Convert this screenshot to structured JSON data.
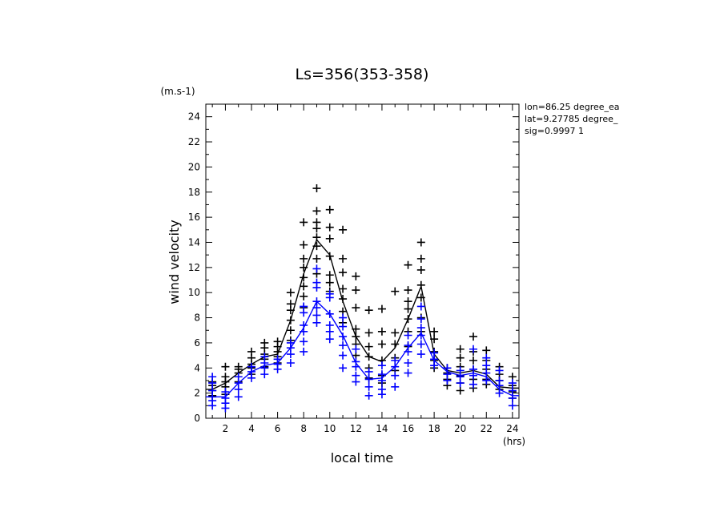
{
  "chart_data": {
    "type": "scatter",
    "title": "Ls=356(353-358)",
    "ylabel": "wind velocity",
    "xlabel": "local time",
    "y_unit": "(m.s-1)",
    "x_unit": "(hrs)",
    "xlim": [
      0.5,
      24.5
    ],
    "ylim": [
      0,
      25
    ],
    "x_ticks": [
      2,
      4,
      6,
      8,
      10,
      12,
      14,
      16,
      18,
      20,
      22,
      24
    ],
    "y_ticks": [
      0,
      2,
      4,
      6,
      8,
      10,
      12,
      14,
      16,
      18,
      20,
      22,
      24
    ],
    "info_lines": [
      "lon=86.25 degree_ea",
      "lat=9.27785 degree_",
      "sig=0.9997 1"
    ],
    "colors": {
      "black_series": "#000000",
      "blue_series": "#0000ff"
    },
    "series": [
      {
        "color": "black",
        "mean": [
          2.3,
          2.8,
          3.6,
          4.3,
          4.9,
          5.1,
          7.8,
          11.5,
          14.2,
          13.0,
          9.3,
          6.5,
          4.9,
          4.5,
          5.6,
          7.9,
          10.5,
          5.1,
          3.8,
          3.6,
          3.8,
          3.5,
          2.5,
          2.4
        ],
        "points": [
          [
            1,
            2.2
          ],
          [
            1,
            2.6
          ],
          [
            1,
            2.9
          ],
          [
            1,
            1.8
          ],
          [
            2,
            1.9
          ],
          [
            2,
            2.5
          ],
          [
            2,
            2.9
          ],
          [
            2,
            3.3
          ],
          [
            2,
            4.1
          ],
          [
            3,
            2.9
          ],
          [
            3,
            3.6
          ],
          [
            3,
            3.9
          ],
          [
            3,
            4.1
          ],
          [
            4,
            3.5
          ],
          [
            4,
            4.0
          ],
          [
            4,
            4.3
          ],
          [
            4,
            4.8
          ],
          [
            4,
            5.3
          ],
          [
            5,
            4.1
          ],
          [
            5,
            4.7
          ],
          [
            5,
            5.1
          ],
          [
            5,
            5.6
          ],
          [
            5,
            6.0
          ],
          [
            6,
            4.4
          ],
          [
            6,
            4.9
          ],
          [
            6,
            5.3
          ],
          [
            6,
            5.7
          ],
          [
            6,
            6.1
          ],
          [
            7,
            6.2
          ],
          [
            7,
            7.0
          ],
          [
            7,
            7.8
          ],
          [
            7,
            8.6
          ],
          [
            7,
            9.1
          ],
          [
            7,
            10.0
          ],
          [
            8,
            8.8
          ],
          [
            8,
            9.7
          ],
          [
            8,
            10.5
          ],
          [
            8,
            11.2
          ],
          [
            8,
            12.0
          ],
          [
            8,
            12.7
          ],
          [
            8,
            13.8
          ],
          [
            8,
            15.6
          ],
          [
            9,
            11.5
          ],
          [
            9,
            12.7
          ],
          [
            9,
            13.7
          ],
          [
            9,
            14.4
          ],
          [
            9,
            15.1
          ],
          [
            9,
            15.6
          ],
          [
            9,
            16.5
          ],
          [
            9,
            18.3
          ],
          [
            10,
            10.1
          ],
          [
            10,
            10.8
          ],
          [
            10,
            11.4
          ],
          [
            10,
            12.9
          ],
          [
            10,
            14.3
          ],
          [
            10,
            15.2
          ],
          [
            10,
            16.6
          ],
          [
            11,
            7.6
          ],
          [
            11,
            8.5
          ],
          [
            11,
            9.5
          ],
          [
            11,
            10.3
          ],
          [
            11,
            11.6
          ],
          [
            11,
            12.7
          ],
          [
            11,
            15.0
          ],
          [
            12,
            5.0
          ],
          [
            12,
            5.9
          ],
          [
            12,
            6.5
          ],
          [
            12,
            7.1
          ],
          [
            12,
            8.8
          ],
          [
            12,
            10.2
          ],
          [
            12,
            11.3
          ],
          [
            13,
            3.2
          ],
          [
            13,
            4.0
          ],
          [
            13,
            4.9
          ],
          [
            13,
            5.7
          ],
          [
            13,
            6.8
          ],
          [
            13,
            8.6
          ],
          [
            14,
            2.8
          ],
          [
            14,
            3.4
          ],
          [
            14,
            4.6
          ],
          [
            14,
            5.9
          ],
          [
            14,
            6.9
          ],
          [
            14,
            8.7
          ],
          [
            15,
            3.8
          ],
          [
            15,
            4.8
          ],
          [
            15,
            5.9
          ],
          [
            15,
            6.8
          ],
          [
            15,
            10.1
          ],
          [
            16,
            5.7
          ],
          [
            16,
            6.9
          ],
          [
            16,
            7.9
          ],
          [
            16,
            8.7
          ],
          [
            16,
            9.3
          ],
          [
            16,
            10.2
          ],
          [
            16,
            12.2
          ],
          [
            17,
            6.9
          ],
          [
            17,
            8.0
          ],
          [
            17,
            9.6
          ],
          [
            17,
            10.6
          ],
          [
            17,
            11.8
          ],
          [
            17,
            12.7
          ],
          [
            17,
            14.0
          ],
          [
            18,
            4.0
          ],
          [
            18,
            4.6
          ],
          [
            18,
            5.3
          ],
          [
            18,
            6.3
          ],
          [
            18,
            6.9
          ],
          [
            19,
            2.6
          ],
          [
            19,
            3.1
          ],
          [
            19,
            3.6
          ],
          [
            19,
            4.0
          ],
          [
            20,
            2.2
          ],
          [
            20,
            2.8
          ],
          [
            20,
            3.4
          ],
          [
            20,
            4.1
          ],
          [
            20,
            4.8
          ],
          [
            20,
            5.5
          ],
          [
            21,
            2.4
          ],
          [
            21,
            3.1
          ],
          [
            21,
            3.9
          ],
          [
            21,
            4.6
          ],
          [
            21,
            5.3
          ],
          [
            21,
            6.5
          ],
          [
            22,
            2.7
          ],
          [
            22,
            3.1
          ],
          [
            22,
            3.9
          ],
          [
            22,
            4.6
          ],
          [
            22,
            5.4
          ],
          [
            23,
            2.3
          ],
          [
            23,
            3.0
          ],
          [
            23,
            3.5
          ],
          [
            23,
            4.1
          ],
          [
            24,
            1.6
          ],
          [
            24,
            2.1
          ],
          [
            24,
            2.6
          ],
          [
            24,
            3.3
          ],
          [
            25,
            2.2
          ],
          [
            25,
            2.6
          ],
          [
            25,
            3.3
          ]
        ]
      },
      {
        "color": "blue",
        "mean": [
          1.7,
          1.7,
          2.8,
          3.7,
          4.2,
          4.4,
          5.6,
          7.2,
          9.3,
          8.3,
          6.6,
          4.4,
          3.1,
          3.2,
          4.1,
          5.6,
          6.8,
          4.6,
          3.7,
          3.4,
          3.6,
          3.3,
          2.3,
          1.8
        ],
        "points": [
          [
            1,
            1.0
          ],
          [
            1,
            1.4
          ],
          [
            1,
            1.7
          ],
          [
            1,
            2.2
          ],
          [
            1,
            2.8
          ],
          [
            1,
            3.3
          ],
          [
            2,
            0.8
          ],
          [
            2,
            1.2
          ],
          [
            2,
            1.6
          ],
          [
            2,
            2.1
          ],
          [
            3,
            1.7
          ],
          [
            3,
            2.3
          ],
          [
            3,
            2.8
          ],
          [
            3,
            3.3
          ],
          [
            4,
            3.2
          ],
          [
            4,
            3.7
          ],
          [
            4,
            4.1
          ],
          [
            5,
            3.5
          ],
          [
            5,
            4.0
          ],
          [
            5,
            4.4
          ],
          [
            5,
            4.9
          ],
          [
            6,
            3.9
          ],
          [
            6,
            4.3
          ],
          [
            6,
            4.7
          ],
          [
            7,
            4.4
          ],
          [
            7,
            5.1
          ],
          [
            7,
            5.6
          ],
          [
            7,
            6.0
          ],
          [
            8,
            5.3
          ],
          [
            8,
            6.1
          ],
          [
            8,
            6.9
          ],
          [
            8,
            7.4
          ],
          [
            8,
            8.4
          ],
          [
            8,
            8.9
          ],
          [
            9,
            7.6
          ],
          [
            9,
            8.2
          ],
          [
            9,
            8.8
          ],
          [
            9,
            9.3
          ],
          [
            9,
            10.4
          ],
          [
            9,
            10.8
          ],
          [
            9,
            11.9
          ],
          [
            10,
            6.3
          ],
          [
            10,
            6.9
          ],
          [
            10,
            7.4
          ],
          [
            10,
            8.3
          ],
          [
            10,
            9.6
          ],
          [
            10,
            9.9
          ],
          [
            11,
            4.0
          ],
          [
            11,
            5.0
          ],
          [
            11,
            5.8
          ],
          [
            11,
            6.5
          ],
          [
            11,
            7.3
          ],
          [
            11,
            8.0
          ],
          [
            12,
            2.9
          ],
          [
            12,
            3.4
          ],
          [
            12,
            4.1
          ],
          [
            12,
            4.5
          ],
          [
            12,
            5.5
          ],
          [
            13,
            1.8
          ],
          [
            13,
            2.5
          ],
          [
            13,
            3.1
          ],
          [
            13,
            3.7
          ],
          [
            14,
            1.9
          ],
          [
            14,
            2.3
          ],
          [
            14,
            3.0
          ],
          [
            14,
            3.5
          ],
          [
            14,
            4.2
          ],
          [
            15,
            2.5
          ],
          [
            15,
            3.4
          ],
          [
            15,
            4.1
          ],
          [
            15,
            4.6
          ],
          [
            16,
            3.6
          ],
          [
            16,
            4.4
          ],
          [
            16,
            5.3
          ],
          [
            16,
            5.8
          ],
          [
            16,
            6.6
          ],
          [
            17,
            5.1
          ],
          [
            17,
            5.9
          ],
          [
            17,
            6.6
          ],
          [
            17,
            7.2
          ],
          [
            17,
            7.9
          ],
          [
            17,
            8.9
          ],
          [
            18,
            4.2
          ],
          [
            18,
            4.7
          ],
          [
            18,
            5.2
          ],
          [
            19,
            3.0
          ],
          [
            19,
            3.5
          ],
          [
            19,
            4.0
          ],
          [
            20,
            2.8
          ],
          [
            20,
            3.3
          ],
          [
            20,
            3.8
          ],
          [
            21,
            2.7
          ],
          [
            21,
            3.4
          ],
          [
            21,
            3.9
          ],
          [
            21,
            5.5
          ],
          [
            22,
            3.0
          ],
          [
            22,
            3.6
          ],
          [
            22,
            4.2
          ],
          [
            22,
            4.8
          ],
          [
            23,
            2.0
          ],
          [
            23,
            2.6
          ],
          [
            23,
            3.0
          ],
          [
            23,
            3.8
          ],
          [
            24,
            1.0
          ],
          [
            24,
            1.6
          ],
          [
            24,
            2.2
          ],
          [
            24,
            2.8
          ],
          [
            25,
            0.9
          ],
          [
            25,
            1.4
          ],
          [
            25,
            2.1
          ],
          [
            25,
            2.7
          ],
          [
            25,
            3.2
          ]
        ]
      }
    ]
  }
}
